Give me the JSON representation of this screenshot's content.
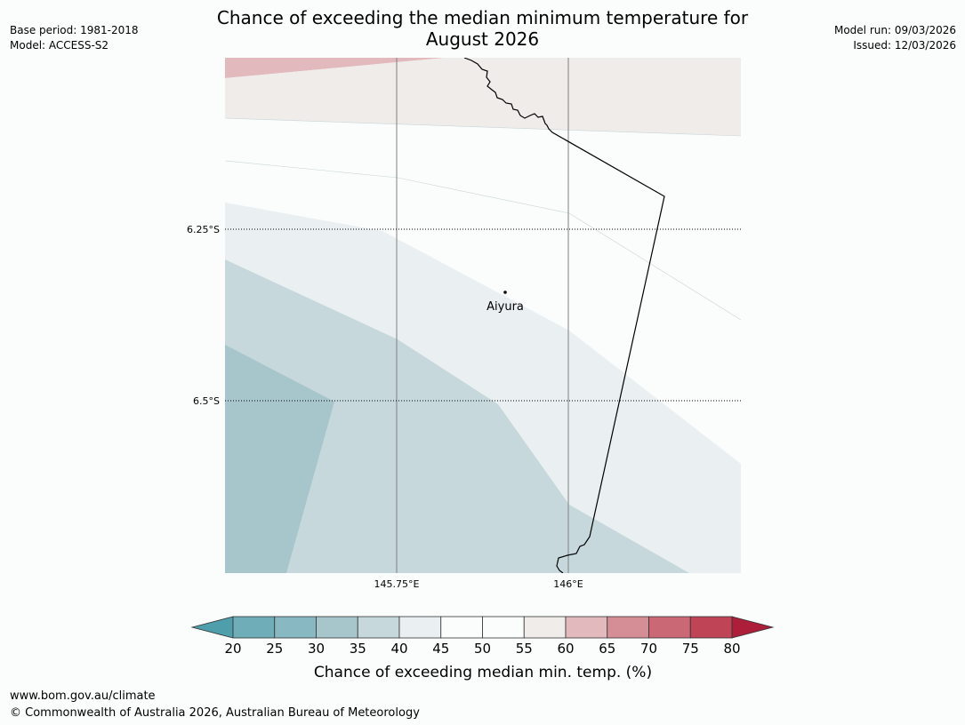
{
  "title_line1": "Chance of exceeding the median minimum temperature for",
  "title_line2": "August 2026",
  "meta": {
    "base_period": "Base period: 1981-2018",
    "model": "Model: ACCESS-S2",
    "model_run": "Model run: 09/03/2026",
    "issued": "Issued: 12/03/2026"
  },
  "map": {
    "longitude_labels": [
      "145.75°E",
      "146°E"
    ],
    "latitude_labels": [
      "6.25°S",
      "6.5°S"
    ],
    "place": "Aiyura",
    "region_values_pct": [
      "60-65",
      "55-60",
      "50-55",
      "45-50",
      "40-45",
      "35-40",
      "30-35"
    ]
  },
  "colorbar": {
    "title": "Chance of exceeding median min. temp. (%)",
    "ticks": [
      "20",
      "25",
      "30",
      "35",
      "40",
      "45",
      "50",
      "55",
      "60",
      "65",
      "70",
      "75",
      "80"
    ],
    "under_color": "#4f9eac",
    "over_color": "#ac1e3a",
    "colors": [
      "#6fadb9",
      "#88b8c2",
      "#a6c6cb",
      "#c6d8dc",
      "#eaeff1",
      "#fbfdfd",
      "#fbfdfd",
      "#efecea",
      "#e2b9bd",
      "#d58d96",
      "#ca6876",
      "#bf4456"
    ]
  },
  "footer": {
    "url": "www.bom.gov.au/climate",
    "copyright": "© Commonwealth of Australia 2026, Australian Bureau of Meteorology"
  }
}
